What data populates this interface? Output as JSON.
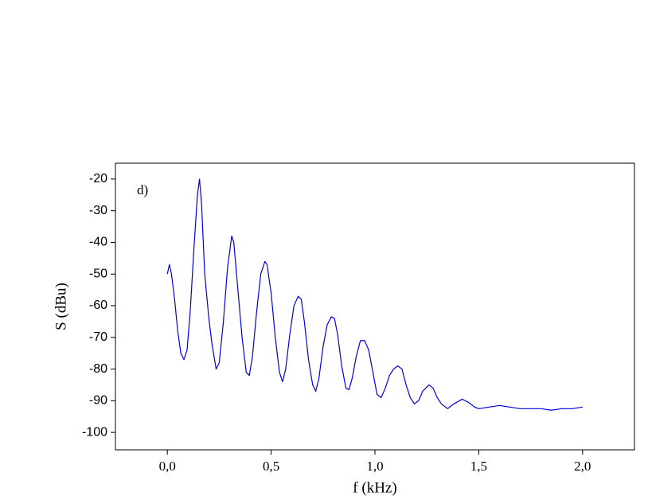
{
  "chart_data": {
    "type": "line",
    "annotation": "d)",
    "xlabel": "f (kHz)",
    "ylabel": "S (dBu)",
    "color": "#0000e0",
    "x": [
      0.0,
      0.01,
      0.02,
      0.035,
      0.05,
      0.065,
      0.08,
      0.095,
      0.11,
      0.13,
      0.145,
      0.155,
      0.165,
      0.18,
      0.2,
      0.215,
      0.235,
      0.25,
      0.27,
      0.29,
      0.31,
      0.32,
      0.34,
      0.36,
      0.38,
      0.395,
      0.41,
      0.43,
      0.45,
      0.47,
      0.48,
      0.5,
      0.52,
      0.54,
      0.555,
      0.57,
      0.59,
      0.61,
      0.63,
      0.645,
      0.66,
      0.68,
      0.7,
      0.715,
      0.73,
      0.75,
      0.77,
      0.79,
      0.805,
      0.82,
      0.84,
      0.86,
      0.875,
      0.89,
      0.91,
      0.93,
      0.95,
      0.97,
      0.99,
      1.01,
      1.03,
      1.05,
      1.07,
      1.09,
      1.11,
      1.13,
      1.15,
      1.17,
      1.19,
      1.21,
      1.23,
      1.26,
      1.28,
      1.3,
      1.32,
      1.35,
      1.38,
      1.42,
      1.45,
      1.48,
      1.5,
      1.55,
      1.6,
      1.65,
      1.7,
      1.75,
      1.8,
      1.85,
      1.9,
      1.95,
      2.0
    ],
    "values": [
      -50,
      -47,
      -50,
      -58,
      -68,
      -75,
      -77,
      -74,
      -62,
      -40,
      -25,
      -20,
      -28,
      -50,
      -64,
      -72,
      -80,
      -78,
      -65,
      -48,
      -38,
      -40,
      -55,
      -70,
      -81,
      -82,
      -76,
      -62,
      -50,
      -46,
      -47,
      -56,
      -70,
      -81,
      -84,
      -80,
      -69,
      -60,
      -57,
      -58,
      -65,
      -77,
      -85,
      -87,
      -83,
      -73,
      -66,
      -63.5,
      -64,
      -69,
      -79,
      -86,
      -86.5,
      -83,
      -76,
      -71,
      -71,
      -74,
      -81,
      -88,
      -89,
      -86,
      -82,
      -80,
      -79,
      -80,
      -85,
      -89,
      -91,
      -90,
      -87,
      -85,
      -86,
      -89,
      -91,
      -92.5,
      -91,
      -89.5,
      -90.5,
      -92,
      -92.5,
      -92,
      -91.5,
      -92,
      -92.5,
      -92.5,
      -92.5,
      -93,
      -92.5,
      -92.5,
      -92
    ],
    "xlim": [
      -0.25,
      2.25
    ],
    "ylim": [
      -105.5,
      -15
    ],
    "xticks": [
      {
        "value": 0,
        "label": "0,0"
      },
      {
        "value": 0.5,
        "label": "0,5"
      },
      {
        "value": 1,
        "label": "1,0"
      },
      {
        "value": 1.5,
        "label": "1,5"
      },
      {
        "value": 2,
        "label": "2,0"
      }
    ],
    "yticks": [
      -20,
      -30,
      -40,
      -50,
      -60,
      -70,
      -80,
      -90,
      -100
    ]
  }
}
